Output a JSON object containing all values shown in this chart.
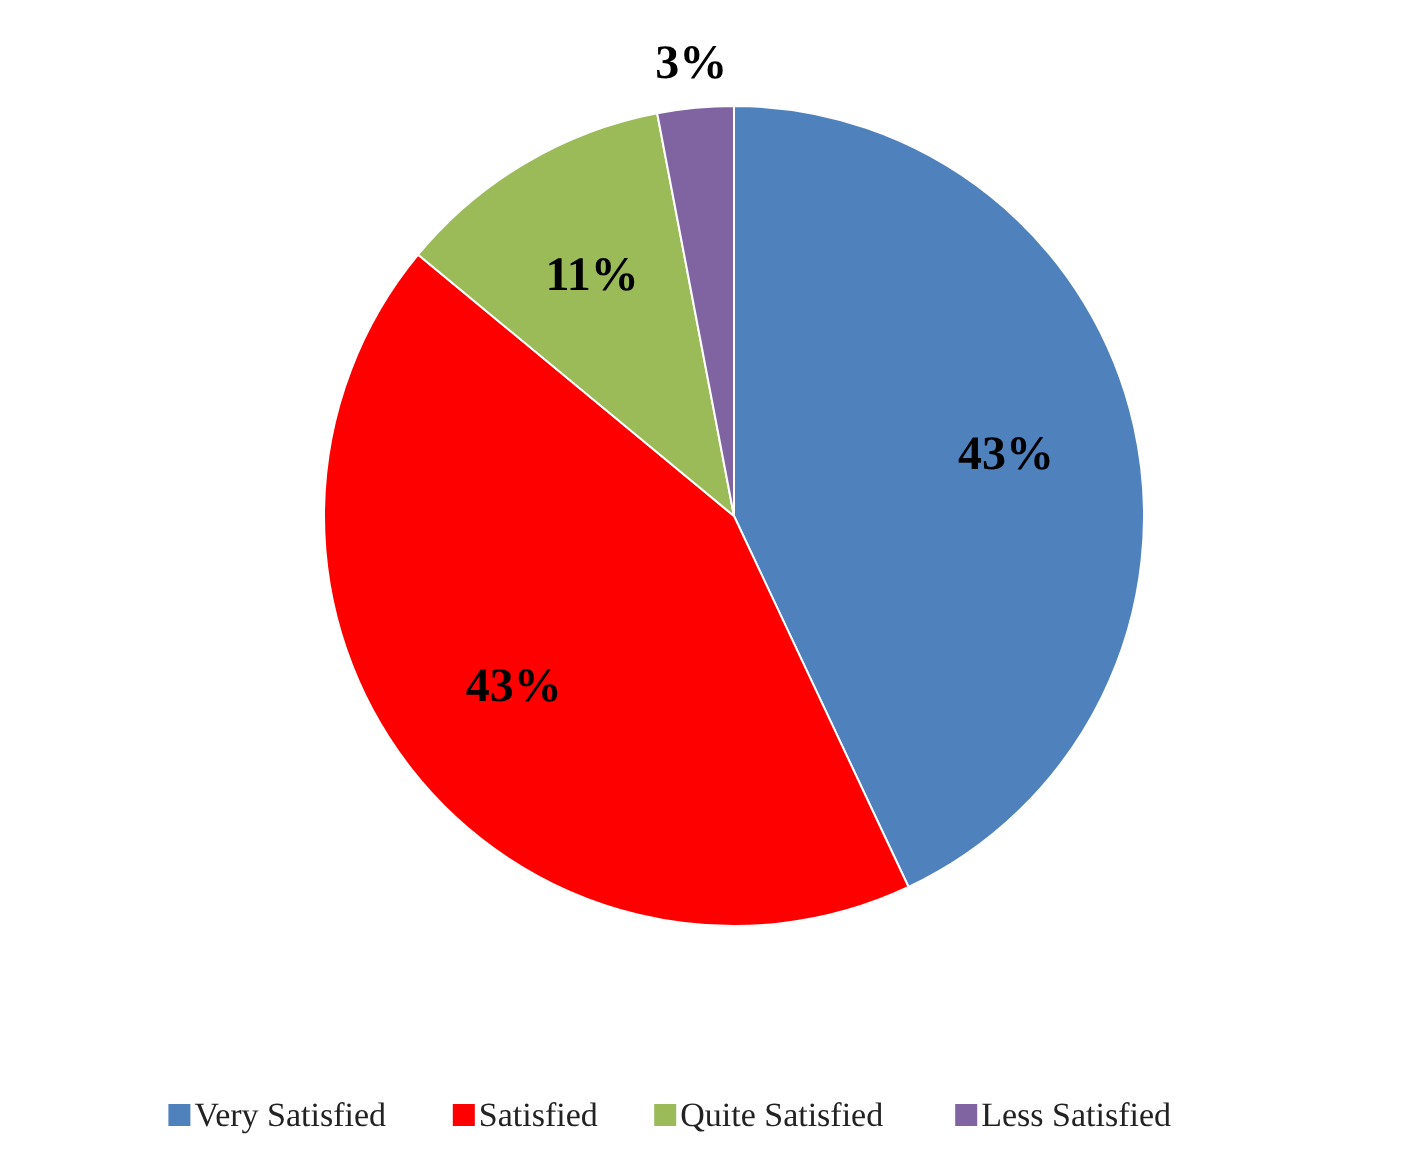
{
  "chart_data": {
    "type": "pie",
    "categories": [
      "Very Satisfied",
      "Satisfied",
      "Quite Satisfied",
      "Less Satisfied"
    ],
    "values": [
      43,
      43,
      11,
      3
    ],
    "colors": [
      "#4f81bd",
      "#ff0000",
      "#9bbb59",
      "#8064a2"
    ],
    "value_labels": [
      "43%",
      "43%",
      "11%",
      "3%"
    ],
    "legend": "bottom"
  }
}
